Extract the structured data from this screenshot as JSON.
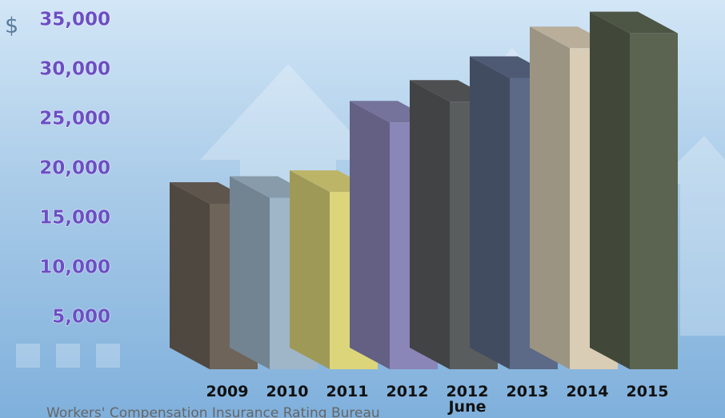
{
  "chart_data": {
    "type": "bar3d",
    "y_prefix": "$",
    "categories": [
      "2009",
      "2010",
      "2011",
      "2012",
      "2012 June",
      "2013",
      "2014",
      "2015"
    ],
    "values": [
      17100,
      17700,
      18300,
      25300,
      27400,
      29800,
      32800,
      34300
    ],
    "colors": [
      "#6e6459",
      "#9fb6c9",
      "#ddd57a",
      "#8a86b8",
      "#5a5d5e",
      "#5c6a87",
      "#d9cdb5",
      "#5a6450"
    ],
    "ylim": [
      0,
      37500
    ],
    "yticks": [
      {
        "value": 5000,
        "label": "5,000"
      },
      {
        "value": 10000,
        "label": "10,000"
      },
      {
        "value": 15000,
        "label": "15,000"
      },
      {
        "value": 20000,
        "label": "20,000"
      },
      {
        "value": 25000,
        "label": "25,000"
      },
      {
        "value": 30000,
        "label": "30,000"
      },
      {
        "value": 35000,
        "label": "35,000"
      }
    ],
    "source": "Workers' Compensation Insurance Rating Bureau"
  }
}
